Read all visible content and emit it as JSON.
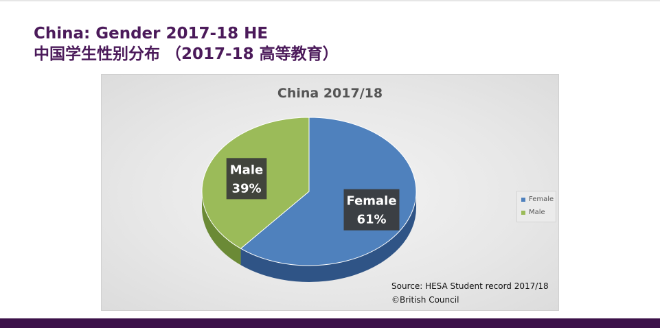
{
  "slide": {
    "title_line1": "China: Gender 2017-18  HE",
    "title_line2": "中国学生性别分布  （2017-18 高等教育）"
  },
  "source": {
    "line1": "Source: HESA Student record 2017/18",
    "line2": "©British Council"
  },
  "colors": {
    "female": "#4f81bd",
    "female_side": "#2f5486",
    "male": "#9bbb59",
    "male_side": "#6b8a36",
    "title_purple": "#4b1a5a",
    "footer": "#3c1149"
  },
  "chart_data": {
    "type": "pie",
    "title": "China 2017/18",
    "categories": [
      "Female",
      "Male"
    ],
    "values": [
      61,
      39
    ],
    "labels": [
      "Female\n61%",
      "Male\n39%"
    ],
    "legend": [
      "Female",
      "Male"
    ],
    "legend_position": "right"
  }
}
